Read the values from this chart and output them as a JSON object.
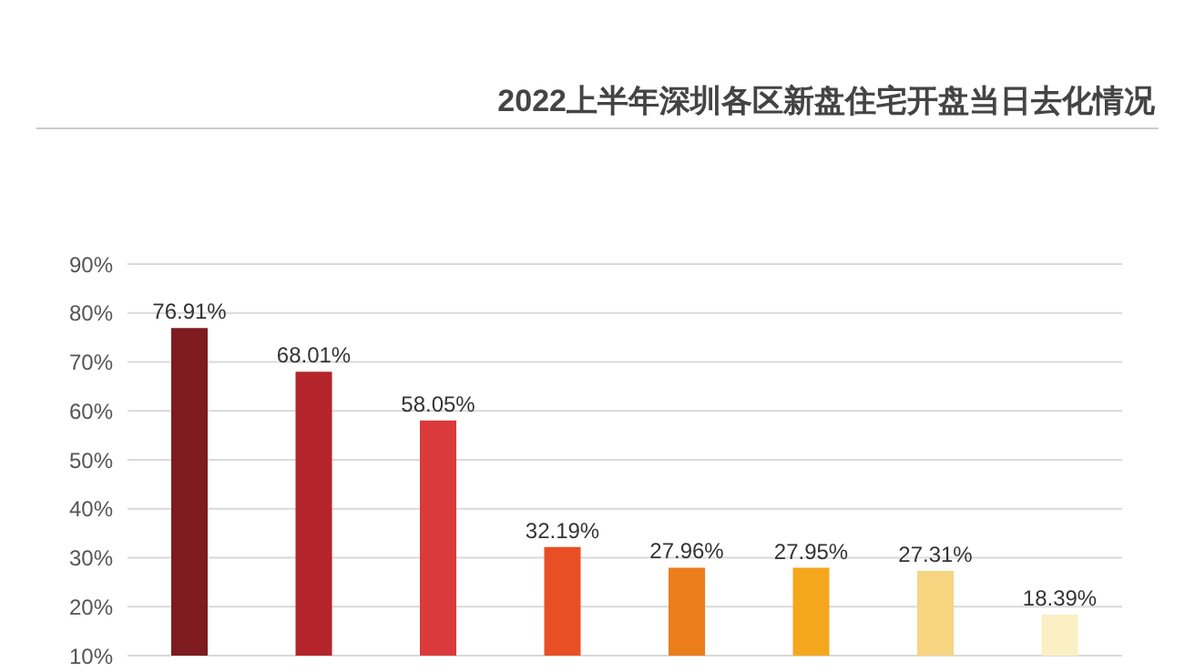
{
  "chart_data": {
    "type": "bar",
    "title": "2022上半年深圳各区新盘住宅开盘当日去化情况",
    "categories": [
      null,
      null,
      null,
      null,
      null,
      null,
      null,
      null
    ],
    "values": [
      76.91,
      68.01,
      58.05,
      32.19,
      27.96,
      27.95,
      27.31,
      18.39
    ],
    "colors": [
      "#7d1b20",
      "#b4242b",
      "#da3a3b",
      "#e94f25",
      "#ec7d1b",
      "#f4a71d",
      "#f7d47f",
      "#fbf0c4"
    ],
    "value_labels": [
      "76.91%",
      "68.01%",
      "58.05%",
      "32.19%",
      "27.96%",
      "27.95%",
      "27.31%",
      "18.39%"
    ],
    "ylim": [
      10,
      90
    ],
    "yticks": [
      {
        "value": 10,
        "label": "10%"
      },
      {
        "value": 20,
        "label": "20%"
      },
      {
        "value": 30,
        "label": "30%"
      },
      {
        "value": 40,
        "label": "40%"
      },
      {
        "value": 50,
        "label": "50%"
      },
      {
        "value": 60,
        "label": "60%"
      },
      {
        "value": 70,
        "label": "70%"
      },
      {
        "value": 80,
        "label": "80%"
      },
      {
        "value": 90,
        "label": "90%"
      }
    ],
    "grid": "y"
  }
}
